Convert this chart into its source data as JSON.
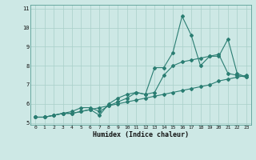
{
  "xlabel": "Humidex (Indice chaleur)",
  "xlim": [
    -0.5,
    23.5
  ],
  "ylim": [
    4.9,
    11.2
  ],
  "yticks": [
    5,
    6,
    7,
    8,
    9,
    10,
    11
  ],
  "xticks": [
    0,
    1,
    2,
    3,
    4,
    5,
    6,
    7,
    8,
    9,
    10,
    11,
    12,
    13,
    14,
    15,
    16,
    17,
    18,
    19,
    20,
    21,
    22,
    23
  ],
  "bg_color": "#cde8e5",
  "line_color": "#2a7d72",
  "grid_color": "#a8cfc9",
  "series": [
    [
      5.3,
      5.3,
      5.4,
      5.5,
      5.5,
      5.6,
      5.7,
      5.4,
      6.0,
      6.3,
      6.5,
      6.6,
      6.5,
      7.9,
      7.9,
      8.7,
      10.6,
      9.6,
      8.0,
      8.5,
      8.5,
      9.4,
      7.6,
      7.4
    ],
    [
      5.3,
      5.3,
      5.4,
      5.5,
      5.6,
      5.8,
      5.8,
      5.6,
      5.9,
      6.1,
      6.3,
      6.6,
      6.5,
      6.6,
      7.5,
      8.0,
      8.2,
      8.3,
      8.4,
      8.5,
      8.6,
      7.6,
      7.5,
      7.4
    ],
    [
      5.3,
      5.3,
      5.4,
      5.5,
      5.5,
      5.6,
      5.7,
      5.8,
      5.9,
      6.0,
      6.1,
      6.2,
      6.3,
      6.4,
      6.5,
      6.6,
      6.7,
      6.8,
      6.9,
      7.0,
      7.2,
      7.3,
      7.4,
      7.5
    ]
  ]
}
